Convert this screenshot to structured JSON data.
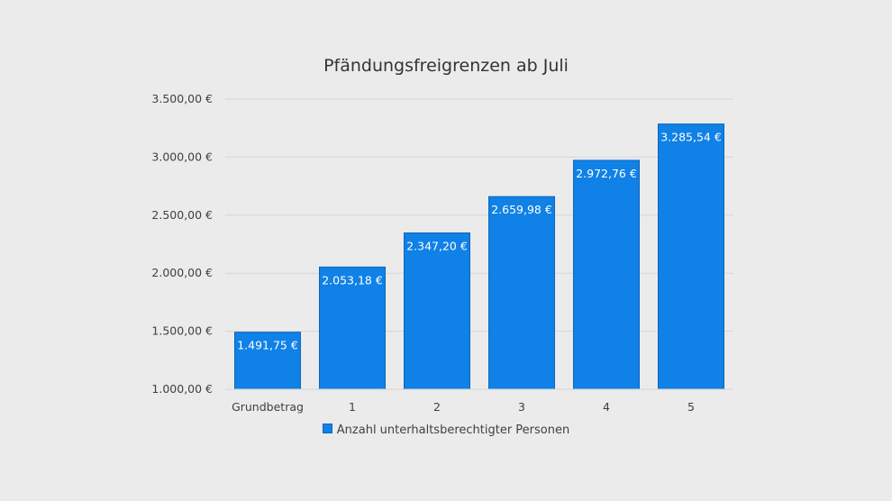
{
  "chart_data": {
    "type": "bar",
    "title": "Pfändungsfreigrenzen ab Juli",
    "categories": [
      "Grundbetrag",
      "1",
      "2",
      "3",
      "4",
      "5"
    ],
    "series": [
      {
        "name": "Anzahl unterhaltsberechtigter Personen",
        "values": [
          1491.75,
          2053.18,
          2347.2,
          2659.98,
          2972.76,
          3285.54
        ],
        "labels": [
          "1.491,75 €",
          "2.053,18 €",
          "2.347,20 €",
          "2.659,98 €",
          "2.972,76 €",
          "3.285,54 €"
        ]
      }
    ],
    "ylim": [
      1000,
      3500
    ],
    "yticks": [
      1000,
      1500,
      2000,
      2500,
      3000,
      3500
    ],
    "ytick_labels": [
      "1.000,00 €",
      "1.500,00 €",
      "2.000,00 €",
      "2.500,00 €",
      "3.000,00 €",
      "3.500,00 €"
    ],
    "xlabel": "",
    "ylabel": "",
    "grid": true,
    "legend_position": "bottom",
    "colors": {
      "bar": "#1081e6",
      "bar_edge": "#0b66bb",
      "label": "#ffffff",
      "grid": "#d6d6d6",
      "text": "#404040"
    }
  }
}
